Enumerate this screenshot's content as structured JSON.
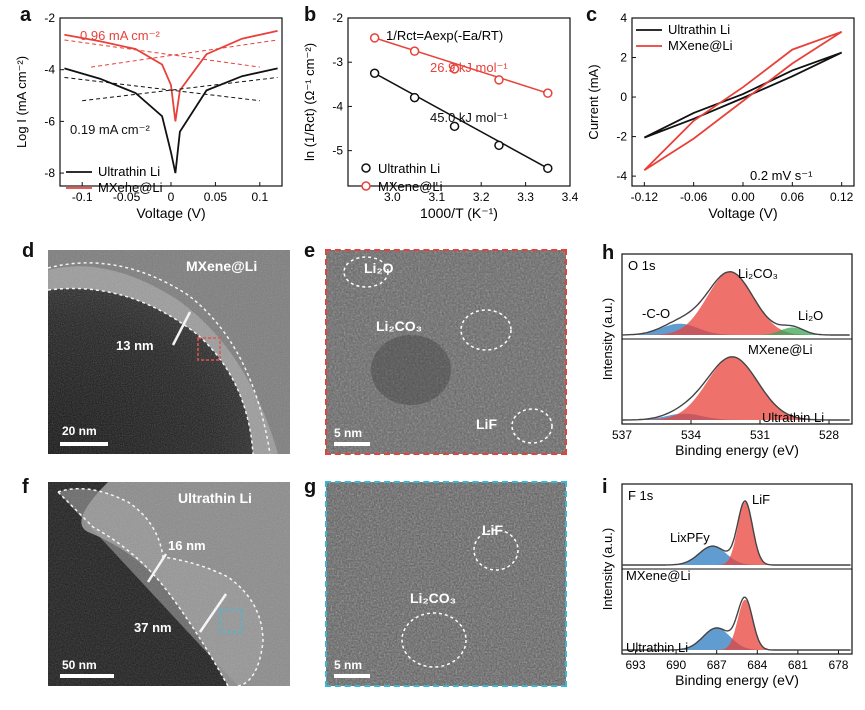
{
  "panels": {
    "a": {
      "letter": "a",
      "ylabel": "Log I (mA cm⁻²)",
      "xlabel": "Voltage (V)",
      "ann_red": "0.96 mA cm⁻²",
      "ann_black": "0.19 mA cm⁻²",
      "legend": [
        "Ultrathin Li",
        "MXene@Li"
      ]
    },
    "b": {
      "letter": "b",
      "ylabel": "ln (1/Rct) (Ω⁻¹ cm⁻²)",
      "xlabel": "1000/T (K⁻¹)",
      "equation": "1/Rct=Aexp(-Ea/RT)",
      "ann_red": "26.9 kJ mol⁻¹",
      "ann_black": "45.0 kJ mol⁻¹",
      "legend": [
        "Ultrathin Li",
        "MXene@Li"
      ]
    },
    "c": {
      "letter": "c",
      "ylabel": "Current (mA)",
      "xlabel": "Voltage (V)",
      "ann": "0.2 mV s⁻¹",
      "legend": [
        "Ultrathin Li",
        "MXene@Li"
      ]
    },
    "d": {
      "letter": "d",
      "label": "MXene@Li",
      "thickness": "13 nm",
      "scale": "20 nm"
    },
    "e": {
      "letter": "e",
      "species": [
        "Li₂O",
        "Li₂CO₃",
        "LiF"
      ],
      "scale": "5 nm"
    },
    "f": {
      "letter": "f",
      "label": "Ultrathin Li",
      "thickness1": "16 nm",
      "thickness2": "37 nm",
      "scale": "50 nm"
    },
    "g": {
      "letter": "g",
      "species": [
        "LiF",
        "Li₂CO₃"
      ],
      "scale": "5 nm"
    },
    "h": {
      "letter": "h",
      "region": "O 1s",
      "peaks": [
        "-C-O",
        "Li₂CO₃",
        "Li₂O"
      ],
      "top_label": "MXene@Li",
      "bottom_label": "Ultrathin Li",
      "ylabel": "Intensity (a.u.)",
      "xlabel": "Binding energy (eV)",
      "ticks": [
        "537",
        "534",
        "531",
        "528"
      ]
    },
    "i": {
      "letter": "i",
      "region": "F 1s",
      "peaks": [
        "LixPFy",
        "LiF"
      ],
      "top_label": "MXene@Li",
      "bottom_label": "Ultrathin Li",
      "ylabel": "Intensity (a.u.)",
      "xlabel": "Binding energy (eV)",
      "ticks": [
        "693",
        "690",
        "687",
        "684",
        "681",
        "678"
      ]
    }
  },
  "colors": {
    "red": "#e8413a",
    "black": "#111111",
    "blue": "#2b7bbf",
    "green": "#3aa655",
    "cyan": "#35b9d6"
  },
  "chart_data": [
    {
      "type": "line",
      "title": "",
      "xlabel": "Voltage (V)",
      "ylabel": "Log I (mA cm⁻²)",
      "xlim": [
        -0.125,
        0.125
      ],
      "ylim": [
        -8.5,
        -2
      ],
      "x_ticks": [
        -0.1,
        -0.05,
        0,
        0.05,
        0.1
      ],
      "y_ticks": [
        -8,
        -6,
        -4,
        -2
      ],
      "series": [
        {
          "name": "Ultrathin Li",
          "color": "#111111",
          "x": [
            -0.12,
            -0.08,
            -0.04,
            -0.01,
            0.0,
            0.005,
            0.01,
            0.04,
            0.08,
            0.12
          ],
          "y": [
            -3.95,
            -4.35,
            -4.9,
            -5.8,
            -7.2,
            -8.0,
            -6.4,
            -4.8,
            -4.25,
            -3.95
          ]
        },
        {
          "name": "MXene@Li",
          "color": "#e8413a",
          "x": [
            -0.12,
            -0.08,
            -0.04,
            -0.01,
            0.0,
            0.005,
            0.01,
            0.04,
            0.08,
            0.12
          ],
          "y": [
            -2.65,
            -2.9,
            -3.2,
            -3.8,
            -4.6,
            -6.0,
            -4.8,
            -3.4,
            -2.8,
            -2.5
          ]
        }
      ]
    },
    {
      "type": "scatter",
      "title": "",
      "xlabel": "1000/T (K⁻¹)",
      "ylabel": "ln (1/Rct) (Ω⁻¹ cm⁻²)",
      "xlim": [
        2.9,
        3.4
      ],
      "ylim": [
        -5.8,
        -2
      ],
      "x_ticks": [
        3.0,
        3.1,
        3.2,
        3.3,
        3.4
      ],
      "y_ticks": [
        -5,
        -4,
        -3,
        -2
      ],
      "series": [
        {
          "name": "Ultrathin Li",
          "color": "#111111",
          "x": [
            2.96,
            3.05,
            3.14,
            3.24,
            3.35
          ],
          "y": [
            -3.25,
            -3.8,
            -4.45,
            -4.88,
            -5.4
          ]
        },
        {
          "name": "MXene@Li",
          "color": "#e8413a",
          "x": [
            2.96,
            3.05,
            3.14,
            3.24,
            3.35
          ],
          "y": [
            -2.45,
            -2.75,
            -3.15,
            -3.4,
            -3.7
          ]
        }
      ]
    },
    {
      "type": "line",
      "title": "",
      "xlabel": "Voltage (V)",
      "ylabel": "Current (mA)",
      "xlim": [
        -0.135,
        0.135
      ],
      "ylim": [
        -4.5,
        4
      ],
      "x_ticks": [
        -0.12,
        -0.06,
        0.0,
        0.06,
        0.12
      ],
      "y_ticks": [
        -4,
        -2,
        0,
        2,
        4
      ],
      "series": [
        {
          "name": "Ultrathin Li",
          "color": "#111111",
          "x": [
            -0.12,
            -0.06,
            0,
            0.06,
            0.12,
            0.06,
            0,
            -0.06,
            -0.12
          ],
          "y": [
            -2.05,
            -1.1,
            -0.05,
            1.05,
            2.25,
            1.35,
            0.15,
            -0.8,
            -2.05
          ]
        },
        {
          "name": "MXene@Li",
          "color": "#e8413a",
          "x": [
            -0.12,
            -0.06,
            0,
            0.06,
            0.12,
            0.06,
            0,
            -0.06,
            -0.12
          ],
          "y": [
            -3.7,
            -2.1,
            -0.2,
            1.7,
            3.3,
            2.4,
            0.5,
            -1.2,
            -3.7
          ]
        }
      ]
    }
  ]
}
